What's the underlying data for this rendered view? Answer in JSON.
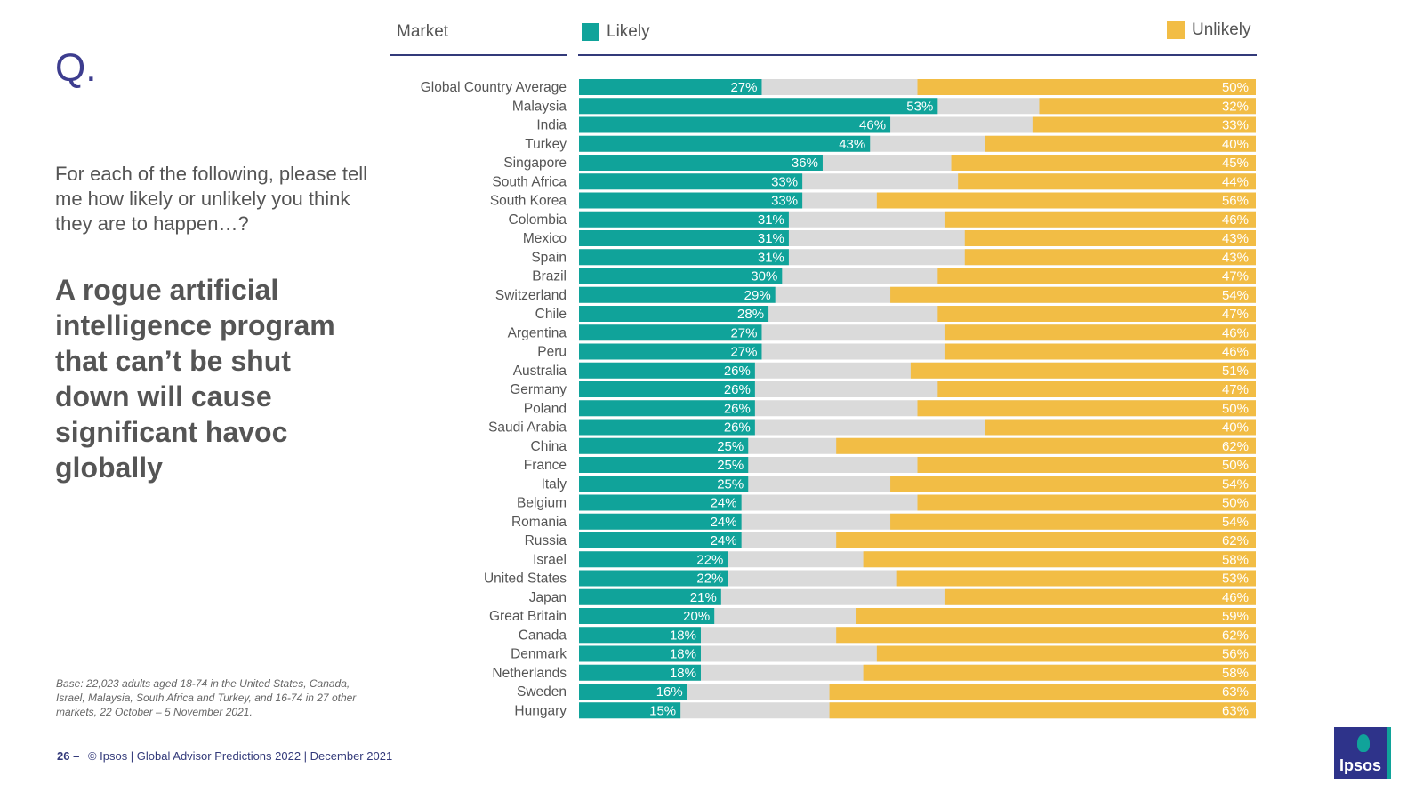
{
  "q_mark": "Q.",
  "prompt": "For each of the following, please tell me how likely or unlikely you think they are to happen…?",
  "statement": "A rogue artificial intelligence program that can’t be shut down will cause significant havoc globally",
  "base_note": "Base: 22,023 adults aged 18-74 in the United States, Canada, Israel, Malaysia, South Africa and Turkey, and 16-74 in 27 other markets, 22 October – 5 November 2021.",
  "footer": {
    "page": "26 –",
    "text": "© Ipsos | Global Advisor Predictions 2022 | December 2021"
  },
  "logo_text": "Ipsos",
  "colors": {
    "likely": "#10a39a",
    "middle": "#dadada",
    "unlikely": "#f2bd45",
    "rule": "#333a7a"
  },
  "chart_data": {
    "type": "bar",
    "orientation": "horizontal-stacked",
    "column_header": "Market",
    "categories": [
      "Global Country Average",
      "Malaysia",
      "India",
      "Turkey",
      "Singapore",
      "South Africa",
      "South Korea",
      "Colombia",
      "Mexico",
      "Spain",
      "Brazil",
      "Switzerland",
      "Chile",
      "Argentina",
      "Peru",
      "Australia",
      "Germany",
      "Poland",
      "Saudi Arabia",
      "China",
      "France",
      "Italy",
      "Belgium",
      "Romania",
      "Russia",
      "Israel",
      "United States",
      "Japan",
      "Great Britain",
      "Canada",
      "Denmark",
      "Netherlands",
      "Sweden",
      "Hungary"
    ],
    "series": [
      {
        "name": "Likely",
        "values": [
          27,
          53,
          46,
          43,
          36,
          33,
          33,
          31,
          31,
          31,
          30,
          29,
          28,
          27,
          27,
          26,
          26,
          26,
          26,
          25,
          25,
          25,
          24,
          24,
          24,
          22,
          22,
          21,
          20,
          18,
          18,
          18,
          16,
          15
        ]
      },
      {
        "name": "Unlikely",
        "values": [
          50,
          32,
          33,
          40,
          45,
          44,
          56,
          46,
          43,
          43,
          47,
          54,
          47,
          46,
          46,
          51,
          47,
          50,
          40,
          62,
          50,
          54,
          50,
          54,
          62,
          58,
          53,
          46,
          59,
          62,
          56,
          58,
          63,
          63
        ]
      }
    ],
    "xlim": [
      0,
      100
    ],
    "value_suffix": "%",
    "legend_position": "top"
  }
}
